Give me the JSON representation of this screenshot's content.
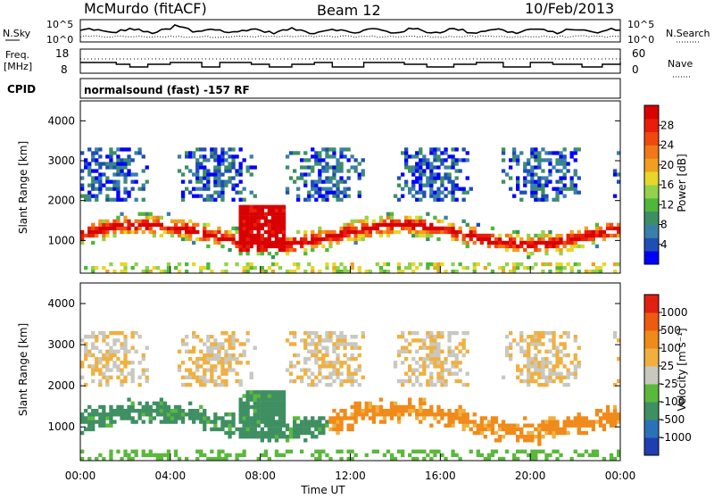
{
  "header": {
    "station": "McMurdo (fitACF)",
    "beam": "Beam 12",
    "date": "10/Feb/2013"
  },
  "noise_panel": {
    "left_label": "N.Sky",
    "right_label": "N.Search",
    "left_ticks": [
      "10^5",
      "10^0"
    ],
    "right_ticks": [
      "10^5",
      "10^0"
    ]
  },
  "freq_panel": {
    "left_label_1": "Freq.",
    "left_label_2": "[MHz]",
    "right_label": "Nave",
    "left_ticks": [
      "18",
      "8"
    ],
    "right_ticks": [
      "60",
      "0"
    ]
  },
  "cpid_panel": {
    "label": "CPID",
    "text": "normalsound (fast) -157 RF"
  },
  "chart_data": [
    {
      "type": "heatmap",
      "name": "power",
      "ylabel": "Slant Range [km]",
      "ylim": [
        180,
        4500
      ],
      "yticks": [
        "4000",
        "3000",
        "2000",
        "1000"
      ],
      "ytick_values": [
        4000,
        3000,
        2000,
        1000
      ],
      "xlim": [
        0,
        24
      ],
      "colorbar_label": "Power [dB]",
      "colorbar_ticks": [
        "28",
        "24",
        "20",
        "16",
        "12",
        "8",
        "4"
      ],
      "colorbar_colors": [
        "#0000ff",
        "#1f4fb4",
        "#3a7fa8",
        "#3d8f63",
        "#4fb83a",
        "#93d24a",
        "#e6d72a",
        "#f0a020",
        "#f07818",
        "#ee4a10",
        "#e81e0a",
        "#d80000"
      ]
    },
    {
      "type": "heatmap",
      "name": "velocity",
      "ylabel": "Slant Range [km]",
      "ylim": [
        180,
        4500
      ],
      "yticks": [
        "4000",
        "3000",
        "2000",
        "1000"
      ],
      "ytick_values": [
        4000,
        3000,
        2000,
        1000
      ],
      "xlim": [
        0,
        24
      ],
      "xlabel": "Time UT",
      "xticks": [
        "00:00",
        "04:00",
        "08:00",
        "12:00",
        "16:00",
        "20:00",
        "00:00"
      ],
      "xtick_values": [
        0,
        4,
        8,
        12,
        16,
        20,
        24
      ],
      "colorbar_label": "Velocity [m s⁻¹]",
      "colorbar_ticks": [
        "1000",
        "500",
        "100",
        "25",
        "-25",
        "-100",
        "-500",
        "-1000"
      ],
      "colorbar_colors": [
        "#1f3fb0",
        "#2a72b8",
        "#3f8f62",
        "#5ab83c",
        "#c8c8c0",
        "#f0b040",
        "#f08a1a",
        "#ee5a10",
        "#e02010"
      ]
    }
  ]
}
